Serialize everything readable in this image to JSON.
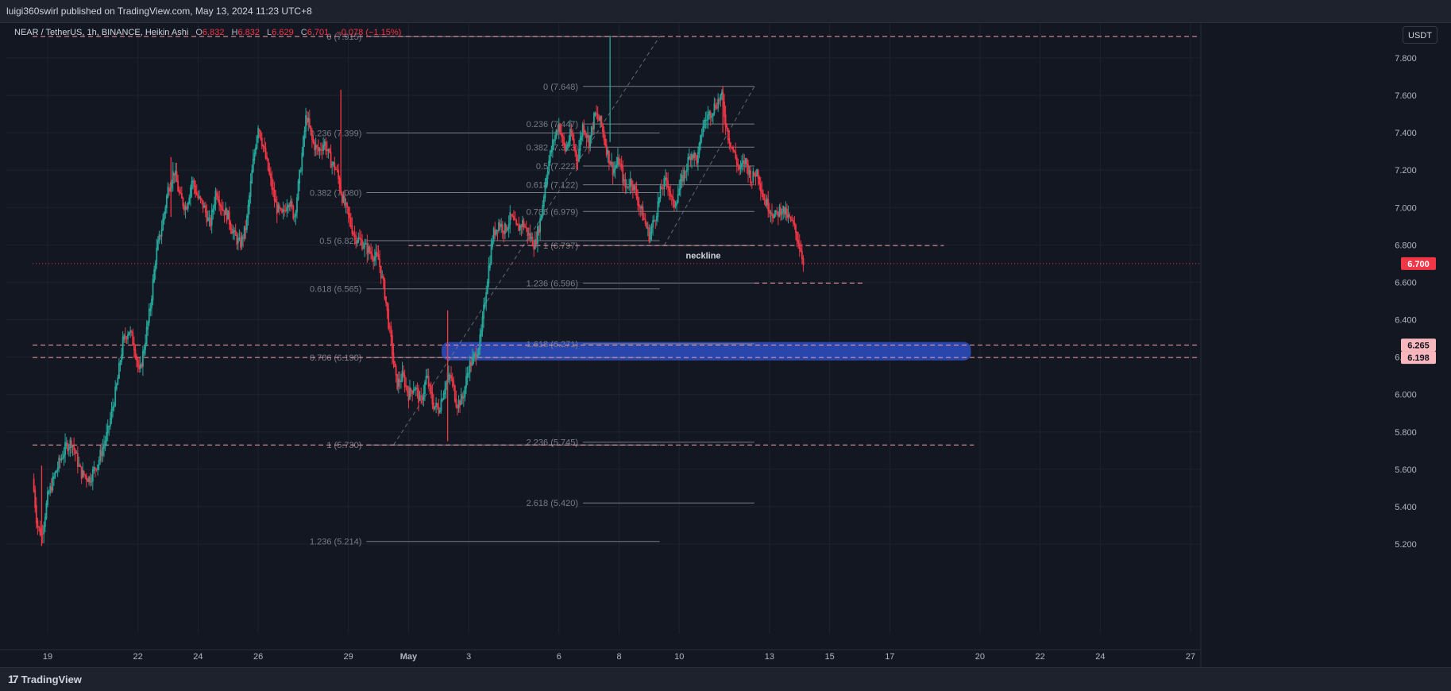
{
  "header": {
    "published_by": "luigi360swirl published on TradingView.com, May 13, 2024 11:23 UTC+8"
  },
  "legend": {
    "symbol": "NEAR / TetherUS, 1h, BINANCE, Heikin Ashi",
    "open_label": "O",
    "open": "6.832",
    "high_label": "H",
    "high": "6.832",
    "low_label": "L",
    "low": "6.629",
    "close_label": "C",
    "close": "6.701",
    "change": "−0.078 (−1.15%)"
  },
  "unit_button": "USDT",
  "footer": {
    "brand": "TradingView",
    "logo_icon": "tradingview-logo-icon"
  },
  "colors": {
    "background": "#131722",
    "up": "#26a69a",
    "down": "#f23645",
    "fib_line": "#787b86",
    "dashed_level": "#f7a1a8",
    "zone": "#2b4bb8",
    "price_tag": "#f23645"
  },
  "chart_data": {
    "type": "candlestick",
    "style": "Heikin Ashi",
    "interval": "1h",
    "exchange": "BINANCE",
    "pair": "NEAR / TetherUS",
    "y_axis": {
      "ticks": [
        "7.800",
        "7.600",
        "7.400",
        "7.200",
        "7.000",
        "6.800",
        "6.600",
        "6.400",
        "6.200",
        "6.000",
        "5.800",
        "5.600",
        "5.400",
        "5.200"
      ],
      "range": [
        5.15,
        7.95
      ]
    },
    "x_axis": {
      "ticks": [
        {
          "label": "19",
          "t": 0.5
        },
        {
          "label": "22",
          "t": 3.5
        },
        {
          "label": "24",
          "t": 5.5
        },
        {
          "label": "26",
          "t": 7.5
        },
        {
          "label": "29",
          "t": 10.5
        },
        {
          "label": "May",
          "t": 12.5,
          "bold": true
        },
        {
          "label": "3",
          "t": 14.5
        },
        {
          "label": "6",
          "t": 17.5
        },
        {
          "label": "8",
          "t": 19.5
        },
        {
          "label": "10",
          "t": 21.5
        },
        {
          "label": "13",
          "t": 24.5
        },
        {
          "label": "15",
          "t": 26.5
        },
        {
          "label": "17",
          "t": 28.5
        },
        {
          "label": "20",
          "t": 31.5
        },
        {
          "label": "22",
          "t": 33.5
        },
        {
          "label": "24",
          "t": 35.5
        },
        {
          "label": "27",
          "t": 38.5
        }
      ],
      "range": [
        0,
        39.5
      ]
    },
    "price_path": [
      [
        0.0,
        5.55
      ],
      [
        0.15,
        5.3
      ],
      [
        0.3,
        5.25
      ],
      [
        0.5,
        5.45
      ],
      [
        0.8,
        5.6
      ],
      [
        1.1,
        5.72
      ],
      [
        1.3,
        5.75
      ],
      [
        1.6,
        5.58
      ],
      [
        1.9,
        5.55
      ],
      [
        2.2,
        5.65
      ],
      [
        2.5,
        5.8
      ],
      [
        2.8,
        6.05
      ],
      [
        3.0,
        6.28
      ],
      [
        3.2,
        6.35
      ],
      [
        3.4,
        6.25
      ],
      [
        3.55,
        6.1
      ],
      [
        3.7,
        6.25
      ],
      [
        3.9,
        6.45
      ],
      [
        4.1,
        6.75
      ],
      [
        4.3,
        6.9
      ],
      [
        4.5,
        7.1
      ],
      [
        4.7,
        7.2
      ],
      [
        4.9,
        7.05
      ],
      [
        5.1,
        7.0
      ],
      [
        5.3,
        7.15
      ],
      [
        5.5,
        7.05
      ],
      [
        5.7,
        7.0
      ],
      [
        5.9,
        6.9
      ],
      [
        6.1,
        7.1
      ],
      [
        6.3,
        7.0
      ],
      [
        6.5,
        6.95
      ],
      [
        6.7,
        6.85
      ],
      [
        6.9,
        6.8
      ],
      [
        7.1,
        6.9
      ],
      [
        7.3,
        7.2
      ],
      [
        7.5,
        7.45
      ],
      [
        7.7,
        7.3
      ],
      [
        7.9,
        7.15
      ],
      [
        8.1,
        7.0
      ],
      [
        8.3,
        6.95
      ],
      [
        8.5,
        7.05
      ],
      [
        8.7,
        6.95
      ],
      [
        8.9,
        7.2
      ],
      [
        9.1,
        7.5
      ],
      [
        9.3,
        7.35
      ],
      [
        9.5,
        7.3
      ],
      [
        9.7,
        7.35
      ],
      [
        9.9,
        7.25
      ],
      [
        10.1,
        7.2
      ],
      [
        10.3,
        7.05
      ],
      [
        10.5,
        6.95
      ],
      [
        10.7,
        6.85
      ],
      [
        10.9,
        6.82
      ],
      [
        11.1,
        6.78
      ],
      [
        11.3,
        6.75
      ],
      [
        11.5,
        6.72
      ],
      [
        11.7,
        6.55
      ],
      [
        11.9,
        6.3
      ],
      [
        12.1,
        6.05
      ],
      [
        12.3,
        6.1
      ],
      [
        12.5,
        6.0
      ],
      [
        12.7,
        6.05
      ],
      [
        12.9,
        5.95
      ],
      [
        13.1,
        6.1
      ],
      [
        13.3,
        5.95
      ],
      [
        13.5,
        5.92
      ],
      [
        13.7,
        6.05
      ],
      [
        13.9,
        6.1
      ],
      [
        14.1,
        5.95
      ],
      [
        14.3,
        5.98
      ],
      [
        14.5,
        6.15
      ],
      [
        14.7,
        6.2
      ],
      [
        14.9,
        6.3
      ],
      [
        15.1,
        6.6
      ],
      [
        15.3,
        6.85
      ],
      [
        15.5,
        6.92
      ],
      [
        15.7,
        6.88
      ],
      [
        15.9,
        6.95
      ],
      [
        16.1,
        6.88
      ],
      [
        16.3,
        6.92
      ],
      [
        16.5,
        6.85
      ],
      [
        16.7,
        6.8
      ],
      [
        16.9,
        6.95
      ],
      [
        17.1,
        7.2
      ],
      [
        17.3,
        7.35
      ],
      [
        17.5,
        7.45
      ],
      [
        17.7,
        7.3
      ],
      [
        17.9,
        7.4
      ],
      [
        18.1,
        7.25
      ],
      [
        18.3,
        7.45
      ],
      [
        18.5,
        7.35
      ],
      [
        18.7,
        7.5
      ],
      [
        18.9,
        7.45
      ],
      [
        19.1,
        7.3
      ],
      [
        19.3,
        7.2
      ],
      [
        19.5,
        7.25
      ],
      [
        19.7,
        7.1
      ],
      [
        19.9,
        7.15
      ],
      [
        20.1,
        7.05
      ],
      [
        20.3,
        6.95
      ],
      [
        20.5,
        6.85
      ],
      [
        20.7,
        6.95
      ],
      [
        20.9,
        7.1
      ],
      [
        21.1,
        7.15
      ],
      [
        21.3,
        7.0
      ],
      [
        21.5,
        7.1
      ],
      [
        21.7,
        7.2
      ],
      [
        21.9,
        7.3
      ],
      [
        22.1,
        7.25
      ],
      [
        22.3,
        7.45
      ],
      [
        22.5,
        7.5
      ],
      [
        22.7,
        7.55
      ],
      [
        22.9,
        7.6
      ],
      [
        23.1,
        7.4
      ],
      [
        23.3,
        7.3
      ],
      [
        23.5,
        7.2
      ],
      [
        23.7,
        7.25
      ],
      [
        23.9,
        7.15
      ],
      [
        24.1,
        7.2
      ],
      [
        24.3,
        7.05
      ],
      [
        24.5,
        7.0
      ],
      [
        24.7,
        6.95
      ],
      [
        24.9,
        7.0
      ],
      [
        25.1,
        6.95
      ],
      [
        25.3,
        6.9
      ],
      [
        25.5,
        6.8
      ],
      [
        25.65,
        6.7
      ]
    ],
    "spikes": [
      {
        "t": 19.2,
        "high": 7.92,
        "low": 7.35
      },
      {
        "t": 13.8,
        "high": 6.45,
        "low": 5.75
      },
      {
        "t": 10.25,
        "high": 7.63,
        "low": 7.1
      },
      {
        "t": 4.6,
        "high": 7.27,
        "low": 6.95
      },
      {
        "t": 0.3,
        "high": 5.62,
        "low": 5.19
      },
      {
        "t": 22.95,
        "high": 7.65,
        "low": 7.4
      }
    ],
    "fib_retracements": [
      {
        "t_start": 11.1,
        "t_end": 20.85,
        "label_t": 11.1,
        "levels": [
          {
            "label": "0 (7.915)",
            "price": 7.915
          },
          {
            "label": "0.236 (7.399)",
            "price": 7.399
          },
          {
            "label": "0.382 (7.080)",
            "price": 7.08
          },
          {
            "label": "0.5 (6.823)",
            "price": 6.823
          },
          {
            "label": "0.618 (6.565)",
            "price": 6.565
          },
          {
            "label": "0.786 (6.198)",
            "price": 6.198
          },
          {
            "label": "1 (5.730)",
            "price": 5.73
          },
          {
            "label": "1.236 (5.214)",
            "price": 5.214
          }
        ],
        "trend_from": [
          12.0,
          5.73
        ],
        "trend_to": [
          20.85,
          7.915
        ]
      },
      {
        "t_start": 18.3,
        "t_end": 24.0,
        "label_t": 18.3,
        "levels": [
          {
            "label": "0 (7.648)",
            "price": 7.648
          },
          {
            "label": "0.236 (7.447)",
            "price": 7.447
          },
          {
            "label": "0.382 (7.323)",
            "price": 7.323
          },
          {
            "label": "0.5 (7.222)",
            "price": 7.222
          },
          {
            "label": "0.618 (7.122)",
            "price": 7.122
          },
          {
            "label": "0.786 (6.979)",
            "price": 6.979
          },
          {
            "label": "1 (6.797)",
            "price": 6.797
          },
          {
            "label": "1.236 (6.596)",
            "price": 6.596
          },
          {
            "label": "1.618 (6.271)",
            "price": 6.271
          },
          {
            "label": "2.236 (5.745)",
            "price": 5.745
          },
          {
            "label": "2.618 (5.420)",
            "price": 5.42
          }
        ],
        "trend_from": [
          21.0,
          6.797
        ],
        "trend_to": [
          24.0,
          7.648
        ]
      }
    ],
    "horizontal_levels": [
      {
        "price": 7.915,
        "t_start": 0,
        "t_end": 39.5,
        "style": "dashed",
        "tag": ""
      },
      {
        "price": 6.265,
        "t_start": 0,
        "t_end": 39.5,
        "style": "dashed",
        "tag": "6.265"
      },
      {
        "price": 6.198,
        "t_start": 0,
        "t_end": 39.5,
        "style": "dashed",
        "tag": "6.198"
      },
      {
        "price": 5.73,
        "t_start": 0,
        "t_end": 31.3,
        "style": "dashed",
        "tag": ""
      },
      {
        "price": 6.797,
        "t_start": 12.5,
        "t_end": 30.3,
        "style": "dashed",
        "tag": ""
      },
      {
        "price": 6.596,
        "t_start": 24.0,
        "t_end": 27.6,
        "style": "dashed",
        "tag": ""
      },
      {
        "price": 6.7,
        "t_start": 0,
        "t_end": 39.5,
        "style": "dotted",
        "tag": "6.700"
      }
    ],
    "zone": {
      "t_start": 13.6,
      "t_end": 31.2,
      "top": 6.268,
      "bottom": 6.195
    },
    "annotations": [
      {
        "text": "neckline",
        "t": 22.3,
        "price": 6.745
      }
    ],
    "last_price": 6.7
  }
}
